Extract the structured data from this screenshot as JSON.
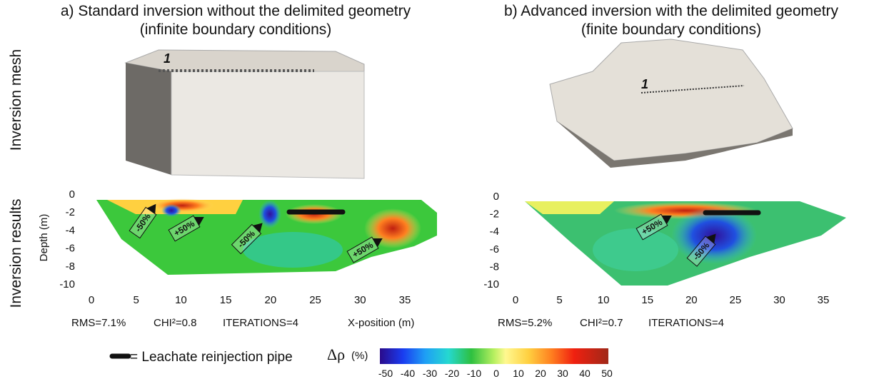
{
  "row_labels": [
    "Inversion mesh",
    "Inversion results"
  ],
  "depth_label": "Depth (m)",
  "panels": [
    {
      "title": "a) Standard inversion without the delimited geometry",
      "subtitle": "(infinite boundary conditions)",
      "profile_label": "1",
      "stats": [
        "RMS=7.1%",
        "CHI²=0.8",
        "ITERATIONS=4"
      ],
      "x_label": "X-position (m)",
      "xticks": [
        0,
        5,
        10,
        15,
        20,
        25,
        30,
        35
      ],
      "yticks": [
        0,
        -2,
        -4,
        -6,
        -8,
        -10
      ],
      "annotations": [
        "-50%",
        "+50%",
        "-50%",
        "+50%"
      ]
    },
    {
      "title": "b) Advanced inversion with the delimited geometry",
      "subtitle": "(finite boundary conditions)",
      "profile_label": "1",
      "stats": [
        "RMS=5.2%",
        "CHI²=0.7",
        "ITERATIONS=4"
      ],
      "xticks": [
        0,
        5,
        10,
        15,
        20,
        25,
        30,
        35
      ],
      "yticks": [
        0,
        -2,
        -4,
        -6,
        -8,
        -10
      ],
      "annotations": [
        "+50%",
        "-50%"
      ]
    }
  ],
  "legend": {
    "pipe": "= Leachate reinjection pipe",
    "symbol": "Δρ",
    "unit": "(%)",
    "ticks": [
      -50,
      -40,
      -30,
      -20,
      -10,
      0,
      10,
      20,
      30,
      40,
      50
    ]
  }
}
